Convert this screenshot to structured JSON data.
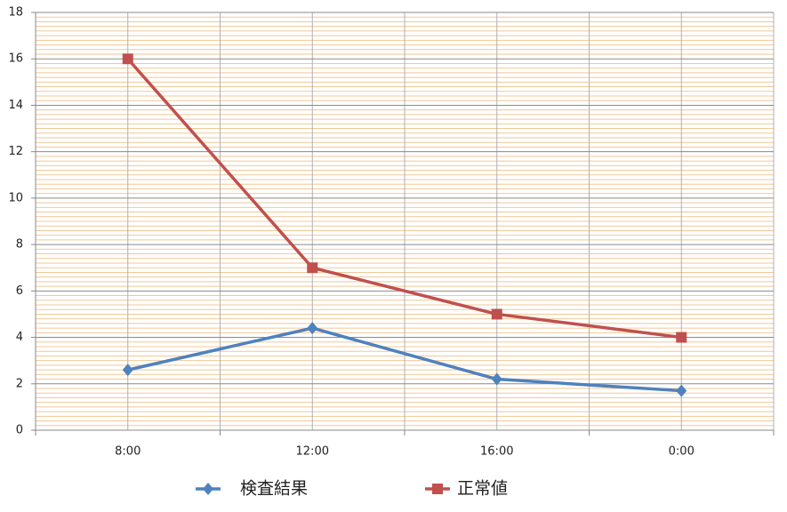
{
  "chart_data": {
    "type": "line",
    "categories": [
      "8:00",
      "12:00",
      "16:00",
      "0:00"
    ],
    "series": [
      {
        "name": "検査結果",
        "color": "#4f81bd",
        "marker": "diamond",
        "values": [
          2.6,
          4.4,
          2.2,
          1.7
        ]
      },
      {
        "name": "正常値",
        "color": "#c0504d",
        "marker": "square",
        "values": [
          16,
          7,
          5,
          4
        ]
      }
    ],
    "ylim": [
      0,
      18
    ],
    "yticks": [
      0,
      2,
      4,
      6,
      8,
      10,
      12,
      14,
      16,
      18
    ],
    "grid": true,
    "minor_grid": true,
    "legend": "bottom"
  }
}
